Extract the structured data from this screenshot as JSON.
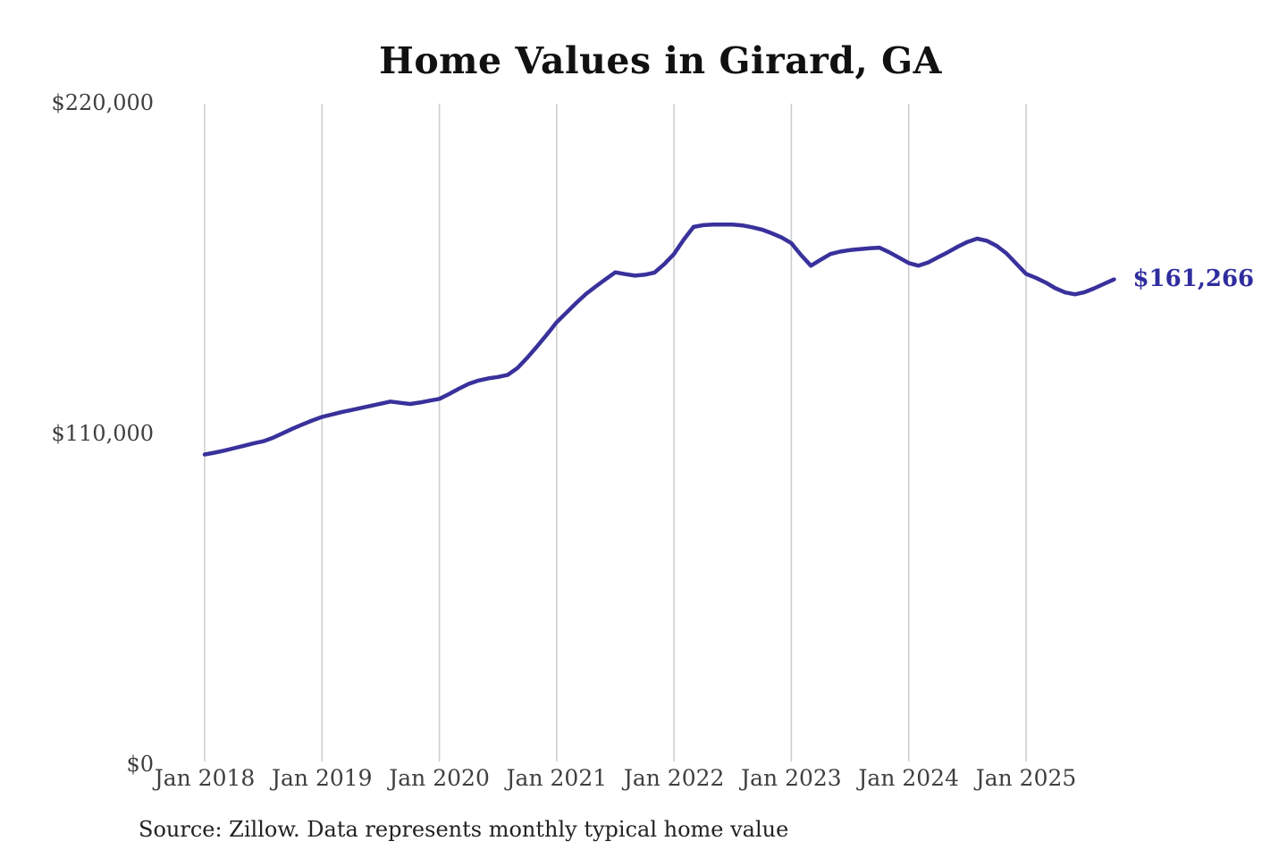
{
  "title": "Home Values in Girard, GA",
  "source_note": "Source: Zillow. Data represents monthly typical home value",
  "end_label": "$161,266",
  "colors": {
    "line": "#39319b",
    "end_label_text": "#2f2d9e",
    "grid": "#cccccc",
    "axis_text": "#3f3f3f",
    "title_text": "#111111",
    "source_text": "#222222",
    "background": "#ffffff"
  },
  "chart_data": {
    "type": "line",
    "title": "Home Values in Girard, GA",
    "xlabel": "",
    "ylabel": "",
    "ylim": [
      0,
      220000
    ],
    "grid": "vertical-only",
    "legend": "none",
    "x_start": "2018-01",
    "x_end": "2025-10",
    "x_tick_labels": [
      "Jan 2018",
      "Jan 2019",
      "Jan 2020",
      "Jan 2021",
      "Jan 2022",
      "Jan 2023",
      "Jan 2024",
      "Jan 2025"
    ],
    "y_ticks": [
      {
        "value": 0,
        "label": "$0"
      },
      {
        "value": 110000,
        "label": "$110,000"
      },
      {
        "value": 220000,
        "label": "$220,000"
      }
    ],
    "end_value": 161266,
    "series": [
      {
        "name": "Monthly typical home value",
        "values": [
          103000,
          103600,
          104300,
          105100,
          105900,
          106700,
          107400,
          108600,
          110100,
          111600,
          113000,
          114300,
          115500,
          116300,
          117100,
          117800,
          118500,
          119200,
          119900,
          120600,
          120200,
          119800,
          120300,
          120900,
          121500,
          123100,
          124900,
          126500,
          127600,
          128300,
          128800,
          129500,
          131800,
          135200,
          139000,
          142900,
          147000,
          150200,
          153400,
          156400,
          158900,
          161300,
          163600,
          163000,
          162500,
          162800,
          163500,
          166300,
          169700,
          174500,
          178700,
          179300,
          179500,
          179500,
          179500,
          179200,
          178600,
          177800,
          176600,
          175200,
          173300,
          169300,
          165800,
          167800,
          169700,
          170500,
          171000,
          171300,
          171600,
          171800,
          170300,
          168500,
          166700,
          165800,
          166900,
          168600,
          170300,
          172100,
          173700,
          174800,
          174100,
          172400,
          169900,
          166500,
          163100,
          161800,
          160200,
          158300,
          156900,
          156300,
          157000,
          158300,
          159800,
          161266
        ]
      }
    ]
  }
}
